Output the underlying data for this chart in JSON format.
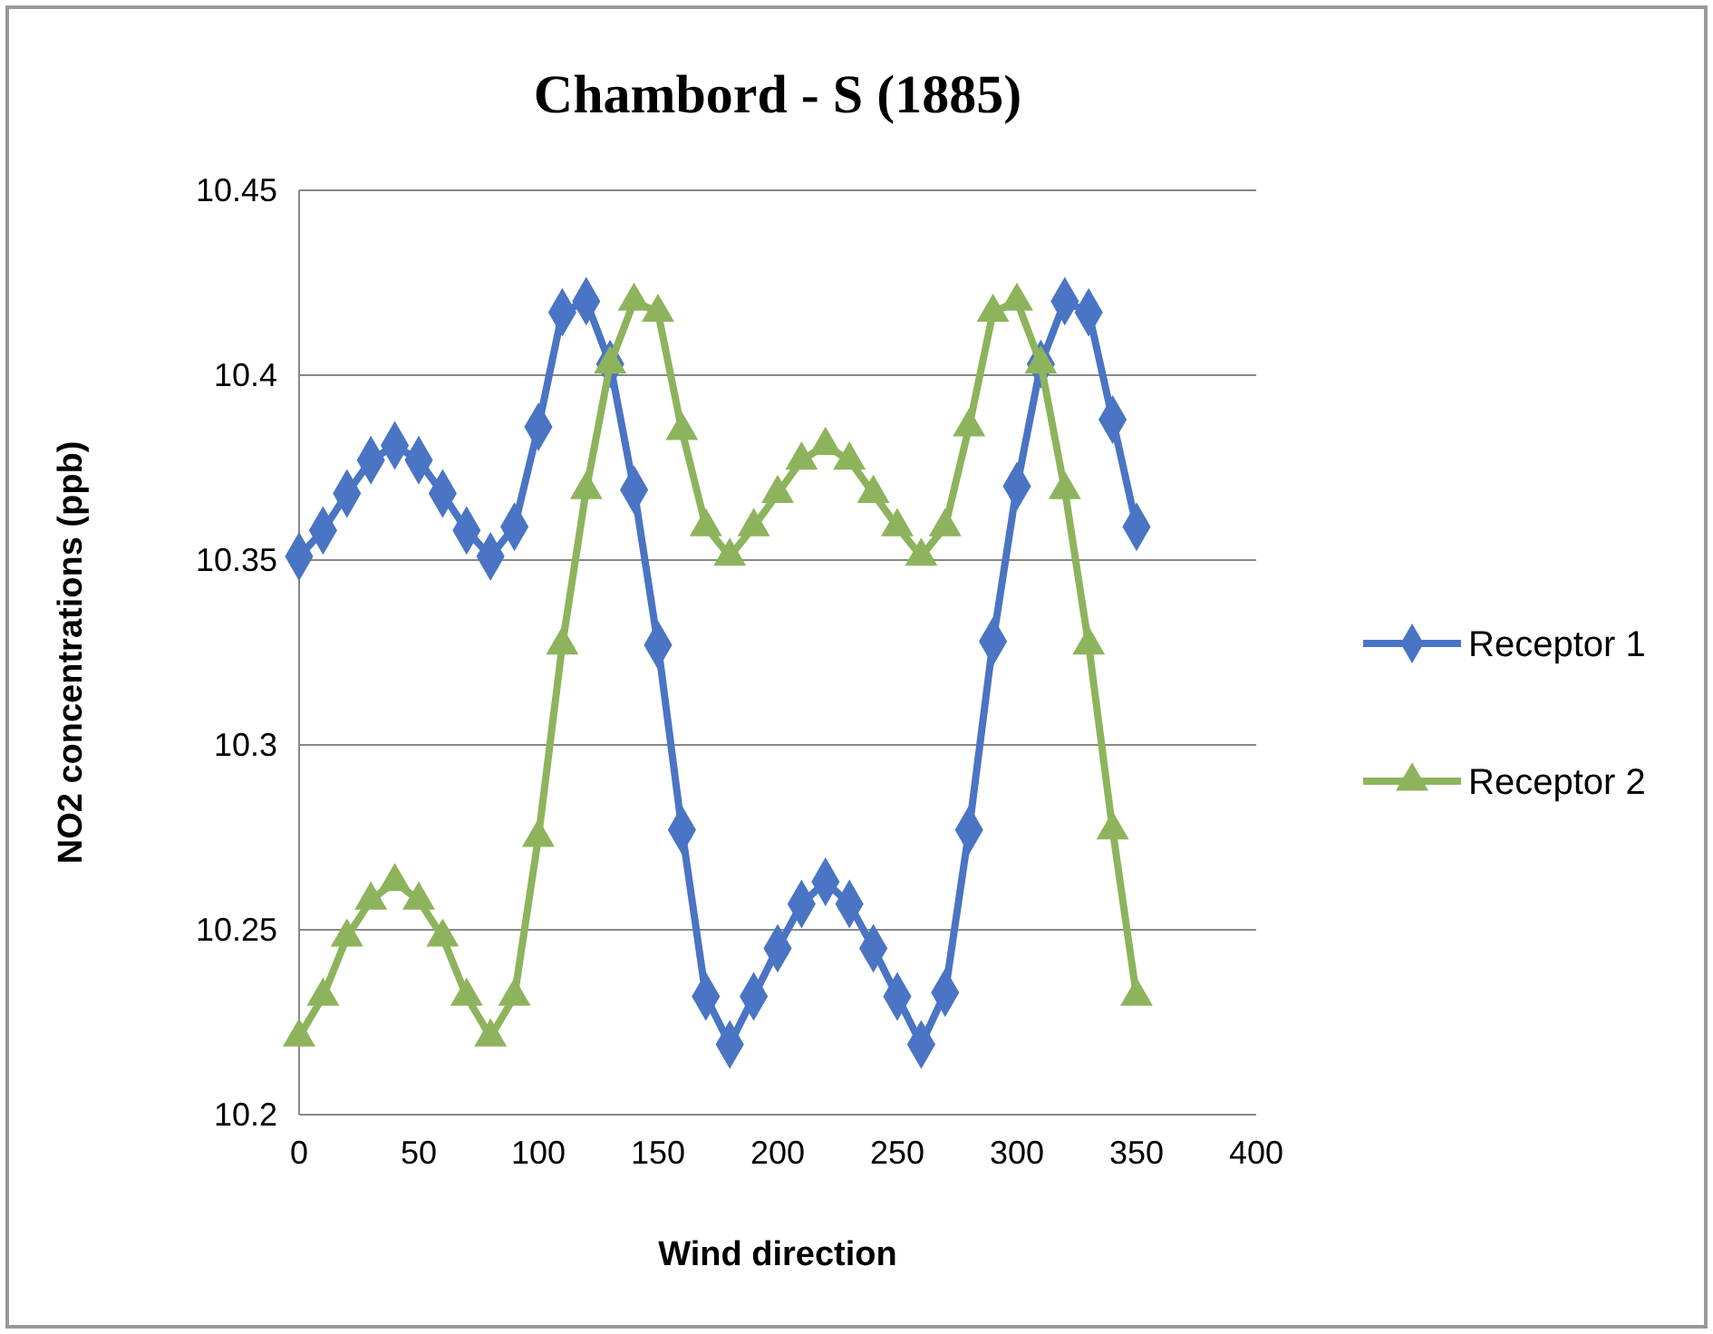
{
  "chart_data": {
    "type": "line",
    "title": "Chambord - S (1885)",
    "xlabel": "Wind direction",
    "ylabel": "NO2 concentrations (ppb)",
    "x": [
      0,
      10,
      20,
      30,
      40,
      50,
      60,
      70,
      80,
      90,
      100,
      110,
      120,
      130,
      140,
      150,
      160,
      170,
      180,
      190,
      200,
      210,
      220,
      230,
      240,
      250,
      260,
      270,
      280,
      290,
      300,
      310,
      320,
      330,
      340,
      350
    ],
    "series": [
      {
        "name": "Receptor 1",
        "color": "#4a74c4",
        "marker": "diamond",
        "values": [
          10.351,
          10.358,
          10.368,
          10.377,
          10.381,
          10.377,
          10.368,
          10.358,
          10.351,
          10.359,
          10.386,
          10.417,
          10.42,
          10.403,
          10.369,
          10.327,
          10.277,
          10.232,
          10.219,
          10.232,
          10.245,
          10.257,
          10.263,
          10.257,
          10.245,
          10.232,
          10.219,
          10.233,
          10.277,
          10.328,
          10.37,
          10.403,
          10.42,
          10.417,
          10.388,
          10.359
        ]
      },
      {
        "name": "Receptor 2",
        "color": "#8db45c",
        "marker": "triangle",
        "values": [
          10.221,
          10.232,
          10.248,
          10.258,
          10.263,
          10.258,
          10.248,
          10.232,
          10.221,
          10.232,
          10.275,
          10.327,
          10.369,
          10.403,
          10.42,
          10.417,
          10.385,
          10.359,
          10.351,
          10.359,
          10.368,
          10.377,
          10.381,
          10.377,
          10.368,
          10.359,
          10.351,
          10.359,
          10.386,
          10.417,
          10.42,
          10.403,
          10.369,
          10.327,
          10.277,
          10.232
        ]
      }
    ],
    "xlim": [
      0,
      400
    ],
    "xticks": [
      0,
      50,
      100,
      150,
      200,
      250,
      300,
      350,
      400
    ],
    "ylim": [
      10.2,
      10.45
    ],
    "yticks": [
      10.2,
      10.25,
      10.3,
      10.35,
      10.4,
      10.45
    ],
    "grid": "y",
    "legend": "right"
  }
}
